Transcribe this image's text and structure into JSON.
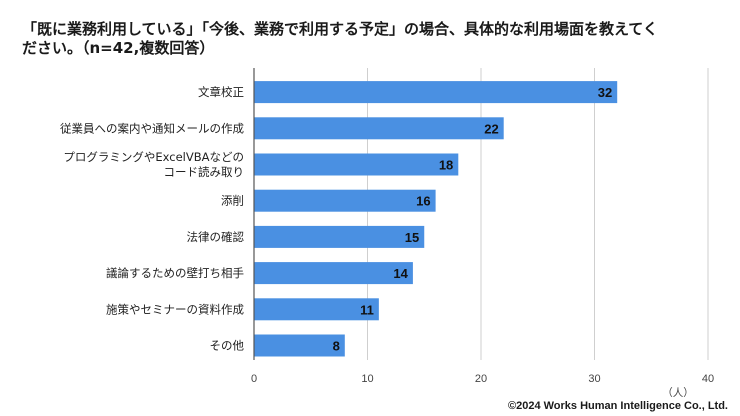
{
  "title_lines": [
    "「既に業務利用している」「今後、業務で利用する予定」の場合、具体的な利用場面を教えてく",
    "ださい。（n=42,複数回答）"
  ],
  "copyright": "©2024 Works Human Intelligence Co., Ltd.",
  "chart_data": {
    "type": "bar",
    "orientation": "horizontal",
    "title": "「既に業務利用している」「今後、業務で利用する予定」の場合、具体的な利用場面を教えてください。（n=42,複数回答）",
    "categories": [
      [
        "文章校正"
      ],
      [
        "従業員への案内や通知メールの作成"
      ],
      [
        "プログラミングやExcelVBAなどの",
        "コード読み取り"
      ],
      [
        "添削"
      ],
      [
        "法律の確認"
      ],
      [
        "議論するための壁打ち相手"
      ],
      [
        "施策やセミナーの資料作成"
      ],
      [
        "その他"
      ]
    ],
    "values": [
      32,
      22,
      18,
      16,
      15,
      14,
      11,
      8
    ],
    "xlabel": "（人）",
    "ylabel": "",
    "xlim": [
      0,
      40
    ],
    "xticks": [
      0,
      10,
      20,
      30,
      40
    ],
    "grid": true,
    "bar_color": "#4a90e2"
  }
}
